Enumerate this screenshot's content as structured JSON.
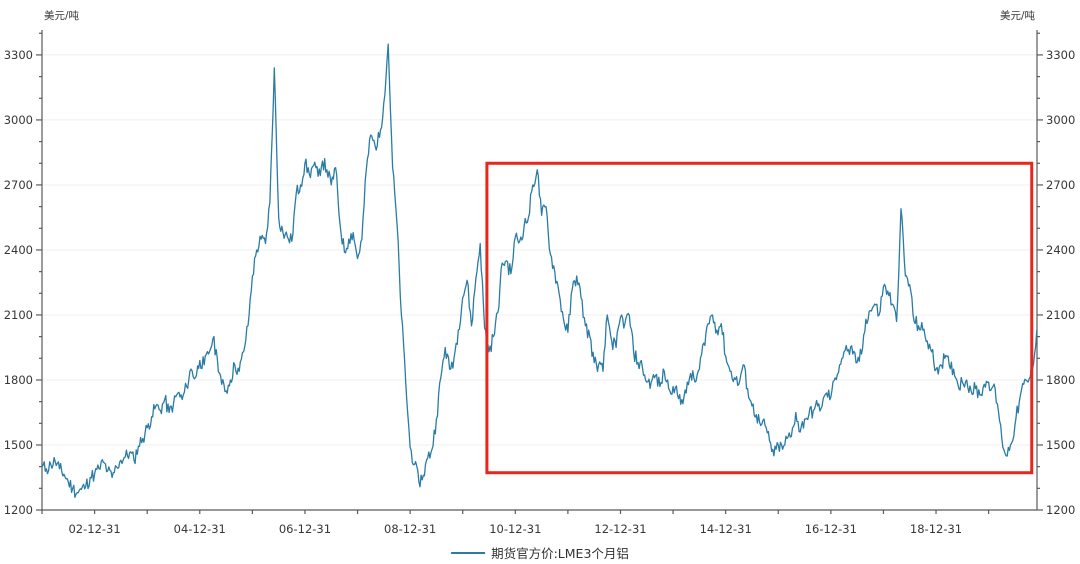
{
  "page": {
    "background": "#ffffff"
  },
  "axis_unit_labels": {
    "left": "美元/吨",
    "right": "美元/吨"
  },
  "legend": {
    "label": "期货官方价:LME3个月铝"
  },
  "colors": {
    "line": "#2a7ba5",
    "annotation_box": "#e9261b",
    "axis": "#5a5a5a",
    "tick_text": "#373737",
    "grid": "#efefef"
  },
  "chart_data": {
    "type": "line",
    "title": "",
    "xlabel": "",
    "ylabel": "美元/吨",
    "ylim": [
      1200,
      3415
    ],
    "xlim": [
      2002.0,
      2020.92
    ],
    "grid": "horizontal-major-only",
    "legend_position": "bottom-center",
    "y_axis": {
      "major_tick_step": 300,
      "minor_tick_step": 100,
      "labels": [
        3300,
        3000,
        2700,
        2400,
        2100,
        1800,
        1500,
        1200
      ],
      "mirrored_right_axis": true
    },
    "x_axis": {
      "tick_interval_years": 1,
      "labeled_ticks": [
        {
          "label": "02-12-31",
          "decimal_year": 2003
        },
        {
          "label": "04-12-31",
          "decimal_year": 2005
        },
        {
          "label": "06-12-31",
          "decimal_year": 2007
        },
        {
          "label": "08-12-31",
          "decimal_year": 2009
        },
        {
          "label": "10-12-31",
          "decimal_year": 2011
        },
        {
          "label": "12-12-31",
          "decimal_year": 2013
        },
        {
          "label": "14-12-31",
          "decimal_year": 2015
        },
        {
          "label": "16-12-31",
          "decimal_year": 2017
        },
        {
          "label": "18-12-31",
          "decimal_year": 2019
        }
      ]
    },
    "series": [
      {
        "name": "期货官方价:LME3个月铝",
        "unit": "美元/吨",
        "color": "#2a7ba5",
        "start_decimal_year": 2002.0,
        "interval_months": 1,
        "values": [
          1400,
          1390,
          1410,
          1425,
          1390,
          1365,
          1330,
          1300,
          1280,
          1295,
          1310,
          1350,
          1365,
          1390,
          1420,
          1380,
          1350,
          1400,
          1430,
          1445,
          1465,
          1430,
          1495,
          1530,
          1580,
          1630,
          1680,
          1660,
          1710,
          1650,
          1690,
          1740,
          1710,
          1770,
          1850,
          1810,
          1890,
          1870,
          1920,
          1990,
          1900,
          1780,
          1750,
          1800,
          1870,
          1840,
          1930,
          2050,
          2280,
          2400,
          2450,
          2430,
          2620,
          3240,
          2550,
          2480,
          2460,
          2440,
          2660,
          2700,
          2800,
          2750,
          2790,
          2740,
          2810,
          2770,
          2700,
          2780,
          2520,
          2390,
          2450,
          2480,
          2360,
          2450,
          2770,
          2930,
          2880,
          2920,
          3080,
          3350,
          2780,
          2520,
          2100,
          1790,
          1490,
          1410,
          1330,
          1360,
          1440,
          1480,
          1620,
          1810,
          1950,
          1850,
          1900,
          2030,
          2180,
          2260,
          2050,
          2270,
          2430,
          2040,
          1930,
          2000,
          2110,
          2340,
          2350,
          2290,
          2460,
          2440,
          2510,
          2550,
          2700,
          2770,
          2560,
          2600,
          2380,
          2300,
          2200,
          2080,
          2020,
          2220,
          2280,
          2180,
          2050,
          2000,
          1880,
          1870,
          1840,
          2100,
          1980,
          1950,
          2090,
          2060,
          2100,
          1930,
          1880,
          1860,
          1790,
          1790,
          1820,
          1770,
          1840,
          1760,
          1770,
          1730,
          1710,
          1740,
          1830,
          1790,
          1850,
          1970,
          2060,
          2100,
          2030,
          2060,
          1910,
          1840,
          1810,
          1780,
          1870,
          1760,
          1680,
          1640,
          1590,
          1590,
          1520,
          1450,
          1500,
          1480,
          1530,
          1540,
          1650,
          1560,
          1620,
          1640,
          1660,
          1680,
          1680,
          1740,
          1720,
          1810,
          1870,
          1930,
          1940,
          1920,
          1880,
          1920,
          2080,
          2120,
          2150,
          2100,
          2230,
          2210,
          2150,
          2070,
          2590,
          2280,
          2240,
          2070,
          2050,
          2030,
          1980,
          1930,
          1850,
          1870,
          1900,
          1870,
          1850,
          1780,
          1790,
          1800,
          1750,
          1760,
          1730,
          1780,
          1790,
          1770,
          1690,
          1530,
          1450,
          1500,
          1590,
          1700,
          1780,
          1790,
          1850,
          2030
        ]
      }
    ],
    "annotation_box": {
      "shape": "rect",
      "color": "#e9261b",
      "x1_decimal_year": 2010.46,
      "x2_decimal_year": 2020.82,
      "y_top_value": 2800,
      "y_bottom_value": 1372
    }
  }
}
